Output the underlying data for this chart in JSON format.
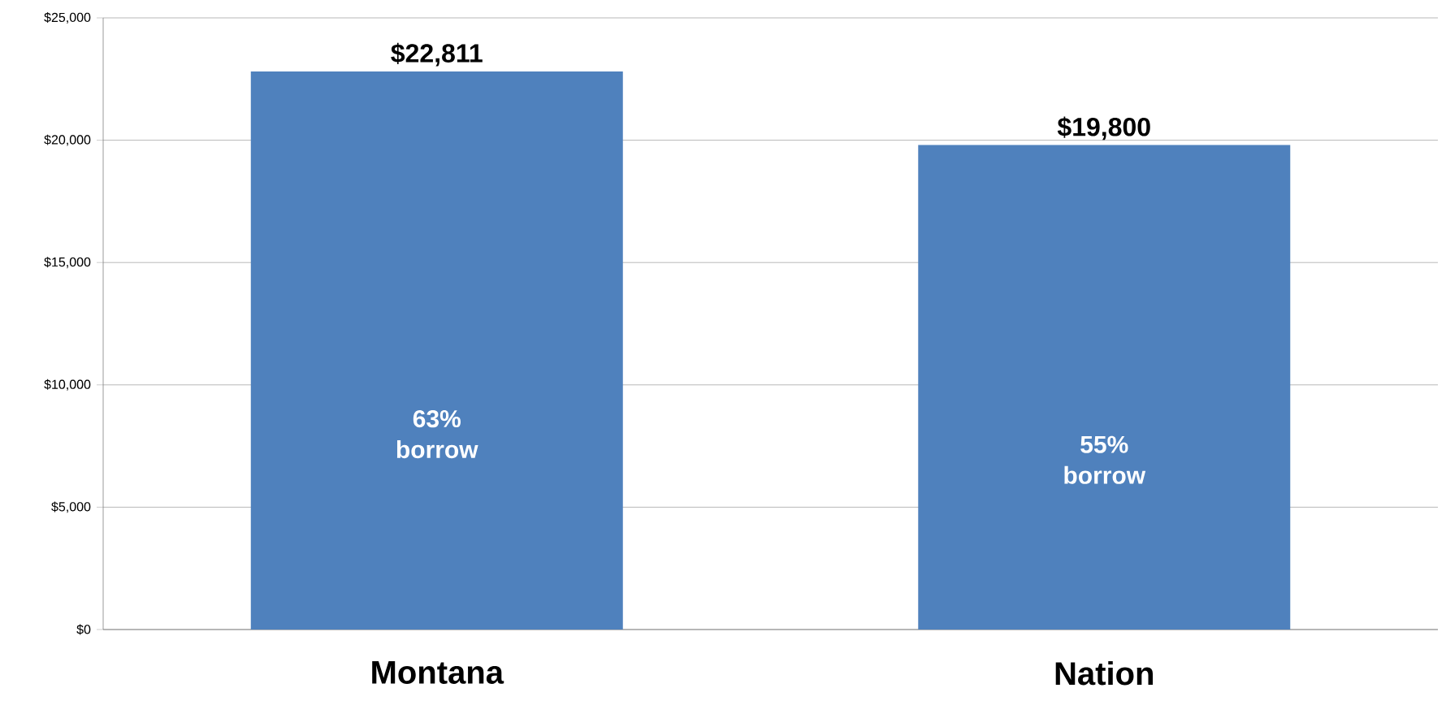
{
  "chart_data": {
    "type": "bar",
    "categories": [
      "Montana",
      "Nation"
    ],
    "values": [
      22811,
      19800
    ],
    "value_labels": [
      "$22,811",
      "$19,800"
    ],
    "color": "#4f81bd",
    "ylim": [
      0,
      25000
    ],
    "yticks": [
      {
        "value": 0,
        "label": "$0"
      },
      {
        "value": 5000,
        "label": "$5,000"
      },
      {
        "value": 10000,
        "label": "$10,000"
      },
      {
        "value": 15000,
        "label": "$15,000"
      },
      {
        "value": 20000,
        "label": "$20,000"
      },
      {
        "value": 25000,
        "label": "$25,000"
      }
    ],
    "grid": "y",
    "annotations": [
      "63% borrow",
      "55% borrow"
    ]
  }
}
